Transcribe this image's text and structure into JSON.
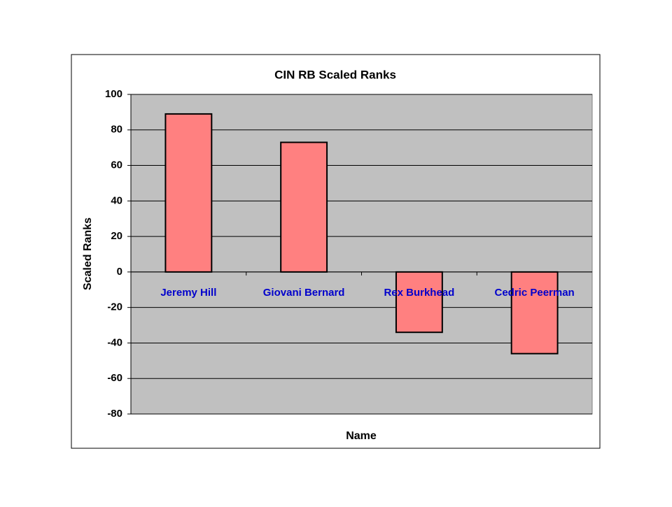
{
  "chart_data": {
    "type": "bar",
    "title": "CIN RB Scaled Ranks",
    "x_label": "Name",
    "y_label": "Scaled Ranks",
    "categories": [
      "Jeremy Hill",
      "Giovani Bernard",
      "Rex Burkhead",
      "Cedric Peerman"
    ],
    "values": [
      89,
      73,
      -34,
      -46
    ],
    "color": "#ff8080",
    "ylim": [
      -80,
      100
    ],
    "yticks": [
      -80,
      -60,
      -40,
      -20,
      0,
      20,
      40,
      60,
      80,
      100
    ],
    "grid": true
  }
}
